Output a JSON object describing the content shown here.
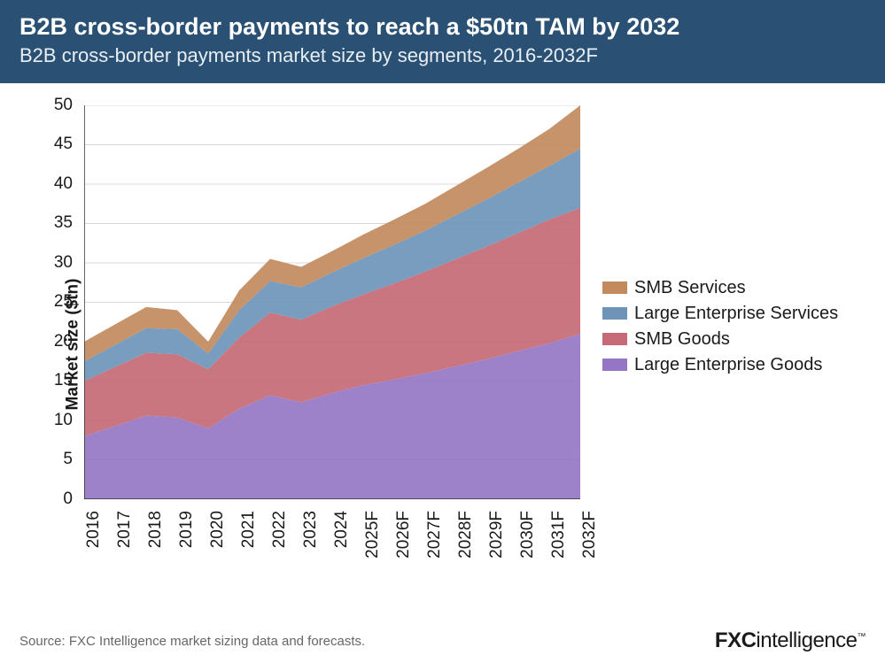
{
  "header": {
    "title": "B2B cross-border payments to reach a $50tn TAM by 2032",
    "subtitle": "B2B cross-border payments market size by segments, 2016-2032F"
  },
  "chart": {
    "type": "stacked-area",
    "ylabel": "Market size ($tn)",
    "ylim": [
      0,
      50
    ],
    "ytick_step": 5,
    "yticks": [
      0,
      5,
      10,
      15,
      20,
      25,
      30,
      35,
      40,
      45,
      50
    ],
    "categories": [
      "2016",
      "2017",
      "2018",
      "2019",
      "2020",
      "2021",
      "2022",
      "2023",
      "2024",
      "2025F",
      "2026F",
      "2027F",
      "2028F",
      "2029F",
      "2030F",
      "2031F",
      "2032F"
    ],
    "series": [
      {
        "name": "Large Enterprise Goods",
        "color": "#9576c4",
        "values": [
          8.0,
          9.3,
          10.6,
          10.4,
          9.0,
          11.5,
          13.2,
          12.3,
          13.5,
          14.5,
          15.2,
          16.0,
          16.9,
          17.8,
          18.8,
          19.8,
          21.0
        ]
      },
      {
        "name": "SMB Goods",
        "color": "#c56a76",
        "values": [
          7.0,
          7.5,
          8.0,
          8.0,
          7.5,
          9.0,
          10.5,
          10.5,
          11.0,
          11.5,
          12.2,
          12.9,
          13.6,
          14.3,
          15.0,
          15.7,
          16.0
        ]
      },
      {
        "name": "Large Enterprise Services",
        "color": "#6e95b8",
        "values": [
          2.5,
          2.8,
          3.1,
          3.2,
          2.0,
          3.5,
          4.0,
          4.1,
          4.3,
          4.6,
          4.9,
          5.2,
          5.6,
          6.0,
          6.4,
          6.8,
          7.5
        ]
      },
      {
        "name": "SMB Services",
        "color": "#c28a5d",
        "values": [
          2.5,
          2.6,
          2.7,
          2.4,
          1.5,
          2.5,
          2.8,
          2.6,
          2.7,
          3.0,
          3.2,
          3.4,
          3.7,
          4.0,
          4.3,
          4.7,
          5.5
        ]
      }
    ],
    "background_color": "#ffffff",
    "grid_color": "#d8d8d8",
    "axis_color": "#333333",
    "grid_width": 1,
    "axis_width": 1.5,
    "label_fontsize": 19,
    "tick_fontsize": 19,
    "legend_fontsize": 20,
    "legend_order": [
      "SMB Services",
      "Large Enterprise Services",
      "SMB Goods",
      "Large Enterprise Goods"
    ]
  },
  "footer": {
    "source": "Source: FXC Intelligence market sizing data and forecasts.",
    "brand_bold": "FXC",
    "brand_rest": "intelligence"
  },
  "colors": {
    "header_bg": "#2a5173",
    "header_text": "#ffffff",
    "body_bg": "#ffffff",
    "footer_text": "#666666"
  }
}
